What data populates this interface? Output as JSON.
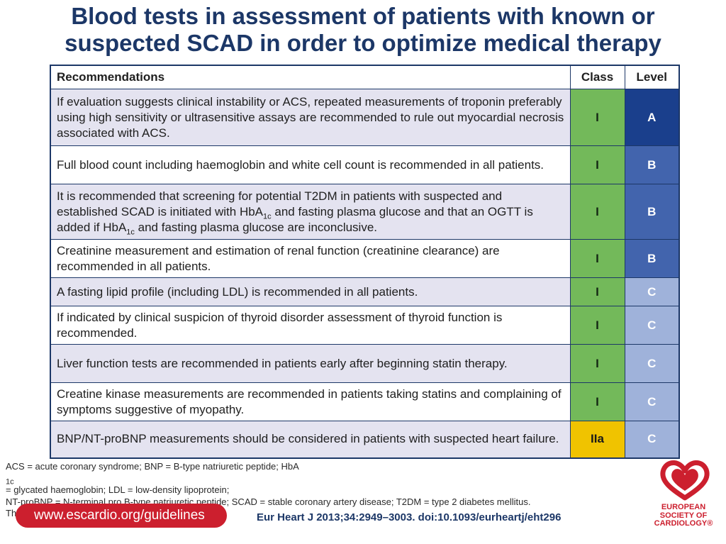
{
  "title": {
    "line1": "Blood tests in assessment of patients with known or",
    "line2": "suspected SCAD in order to optimize medical therapy"
  },
  "table": {
    "headers": {
      "recommendations": "Recommendations",
      "class": "Class",
      "level": "Level"
    },
    "rows": [
      {
        "text": "If evaluation suggests clinical instability or ACS, repeated measurements of troponin preferably using high sensitivity or ultrasensitive assays are recommended to rule out myocardial necrosis associated with ACS.",
        "class": "I",
        "level": "A"
      },
      {
        "text": "Full blood count including haemoglobin and white cell count is recommended in all patients.",
        "class": "I",
        "level": "B"
      },
      {
        "text_part1": "It is recommended that screening for potential T2DM in patients with suspected and established SCAD is initiated with HbA",
        "sub1": "1c",
        "text_part2": " and fasting plasma glucose and that an OGTT is added if HbA",
        "sub2": "1c",
        "text_part3": " and fasting plasma glucose are inconclusive.",
        "class": "I",
        "level": "B"
      },
      {
        "text": "Creatinine measurement and estimation of renal function (creatinine clearance) are recommended in all patients.",
        "class": "I",
        "level": "B"
      },
      {
        "text": "A fasting lipid profile (including LDL) is recommended in all patients.",
        "class": "I",
        "level": "C"
      },
      {
        "text": "If indicated by clinical suspicion of thyroid disorder assessment of thyroid function is recommended.",
        "class": "I",
        "level": "C"
      },
      {
        "text": "Liver function tests are recommended in patients early after beginning statin therapy.",
        "class": "I",
        "level": "C"
      },
      {
        "text": "Creatine kinase measurements are recommended in patients taking statins and complaining of symptoms suggestive of myopathy.",
        "class": "I",
        "level": "C"
      },
      {
        "text": "BNP/NT-proBNP measurements should be considered in patients with suspected heart failure.",
        "class": "IIa",
        "level": "C"
      }
    ]
  },
  "footnote": {
    "line1_part1": "ACS = acute coronary syndrome; BNP = B-type natriuretic peptide; HbA",
    "line1_sub": "1c",
    "line1_part2": " = glycated haemoglobin; LDL = low-density lipoprotein;",
    "line2": "NT-proBNP = N-terminal pro B-type natriuretic peptide; SCAD = stable coronary artery disease; T2DM = type 2 diabetes mellitus.",
    "line3": "This slide corresponds to Table 6 in the full text."
  },
  "footer": {
    "url": "www.escardio.org/guidelines",
    "citation": "Eur Heart J  2013;34:2949–3003. doi:10.1093/eurheartj/eht296"
  },
  "logo": {
    "line1": "EUROPEAN",
    "line2": "SOCIETY OF",
    "line3": "CARDIOLOGY®"
  },
  "colors": {
    "title": "#1c3767",
    "class_I": "#73b95a",
    "class_IIa": "#f0c300",
    "level_A": "#1a3f8c",
    "level_B": "#4264ad",
    "level_C": "#9fb2da",
    "brand_red": "#cc1f2e"
  }
}
